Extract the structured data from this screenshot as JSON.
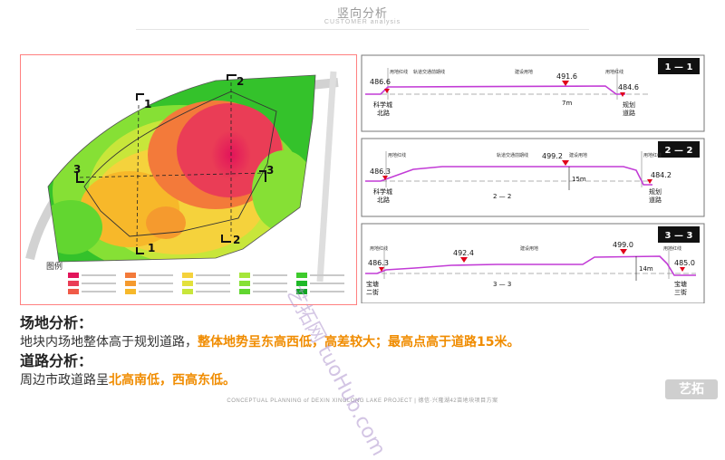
{
  "header": {
    "title": "竖向分析",
    "subtitle": "CUSTOMER analysis"
  },
  "map": {
    "section_markers": [
      "1",
      "2",
      "3"
    ],
    "legend_title": "图例",
    "legend_colors": [
      "#e2145a",
      "#ea3d56",
      "#f05a48",
      "#f37a3a",
      "#f59a2e",
      "#f7b82a",
      "#f5d23c",
      "#e3e13c",
      "#c8e63a",
      "#a6e63a",
      "#86e035",
      "#62d630",
      "#3ecb2c",
      "#1fb928",
      "#10a425"
    ]
  },
  "profiles": [
    {
      "id": "1",
      "tag": "1 — 1",
      "labels": {
        "red_line_left": "用地红线",
        "metro": "轨道交通前期线",
        "land": "建设用地",
        "red_line_right": "用地红线"
      },
      "elev_left": "486.6",
      "elev_peak": "491.6",
      "elev_right": "484.6",
      "diff": "7m",
      "road_left": [
        "科学城",
        "北路"
      ],
      "road_right": [
        "规划",
        "道路"
      ]
    },
    {
      "id": "2",
      "tag": "2 — 2",
      "labels": {
        "red_line_left": "用地红线",
        "metro": "轨道交通前期线",
        "land": "建设用地",
        "red_line_right": "用地红线"
      },
      "elev_left": "486.3",
      "elev_peak": "499.2",
      "elev_right": "484.2",
      "diff": "15m",
      "section_label": "2 — 2",
      "road_left": [
        "科学城",
        "北路"
      ],
      "road_right": [
        "规划",
        "道路"
      ]
    },
    {
      "id": "3",
      "tag": "3 — 3",
      "labels": {
        "red_line_left": "用地红线",
        "land": "建设用地",
        "red_line_right": "用地红线"
      },
      "elev_left": "486.3",
      "elev_mid": "492.4",
      "elev_peak": "499.0",
      "elev_right": "485.0",
      "diff": "14m",
      "section_label": "3 — 3",
      "road_left": [
        "宝塘",
        "二街"
      ],
      "road_right": [
        "宝塘",
        "三街"
      ]
    }
  ],
  "site": {
    "heading": "场地分析：",
    "text_plain": "地块内场地整体高于规划道路，",
    "text_highlight": "整体地势呈东高西低，高差较大；最高点高于道路15米。"
  },
  "road": {
    "heading": "道路分析：",
    "text_plain": "周边市政道路呈",
    "text_highlight": "北高南低，西高东低。"
  },
  "footer": "CONCEPTUAL PLANNING of DEXIN XINGLONG LAKE PROJECT | 德信·兴隆湖42亩地块项目方案",
  "watermark": "艺拓网 tuoHub.com",
  "logo": "艺拓",
  "colors": {
    "profile_line": "#c23bd6",
    "arrow": "#e0001a",
    "highlight": "#f08c00",
    "tag_bg": "#111111"
  }
}
